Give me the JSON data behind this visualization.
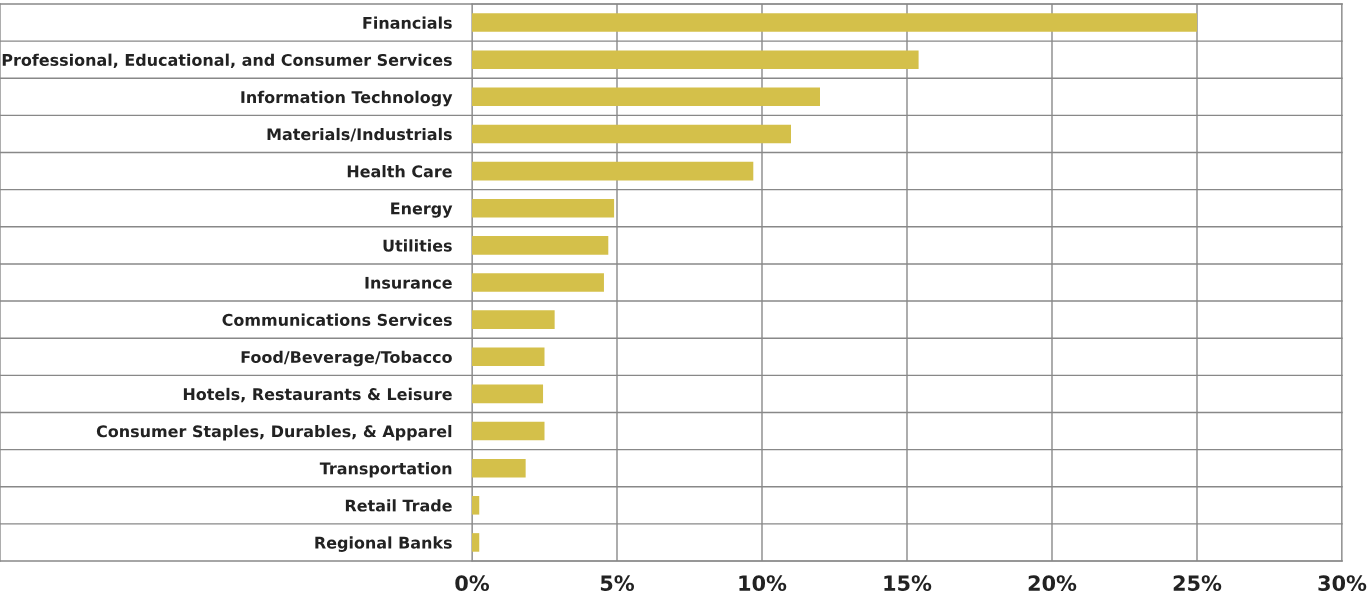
{
  "chart_data": {
    "type": "bar",
    "orientation": "horizontal",
    "categories": [
      "Financials",
      "Professional, Educational, and Consumer Services",
      "Information Technology",
      "Materials/Industrials",
      "Health Care",
      "Energy",
      "Utilities",
      "Insurance",
      "Communications Services",
      "Food/Beverage/Tobacco",
      "Hotels, Restaurants & Leisure",
      "Consumer Staples, Durables, & Apparel",
      "Transportation",
      "Retail Trade",
      "Regional Banks"
    ],
    "values": [
      25.0,
      15.4,
      12.0,
      11.0,
      9.7,
      4.9,
      4.7,
      4.55,
      2.85,
      2.5,
      2.45,
      2.5,
      1.85,
      0.25,
      0.25
    ],
    "color": "#d4c04a",
    "xlim": [
      0,
      30
    ],
    "xticks": [
      {
        "value": 0,
        "label": "0%"
      },
      {
        "value": 5,
        "label": "5%"
      },
      {
        "value": 10,
        "label": "10%"
      },
      {
        "value": 15,
        "label": "15%"
      },
      {
        "value": 20,
        "label": "20%"
      },
      {
        "value": 25,
        "label": "25%"
      },
      {
        "value": 30,
        "label": "30%"
      }
    ],
    "grid": true
  }
}
